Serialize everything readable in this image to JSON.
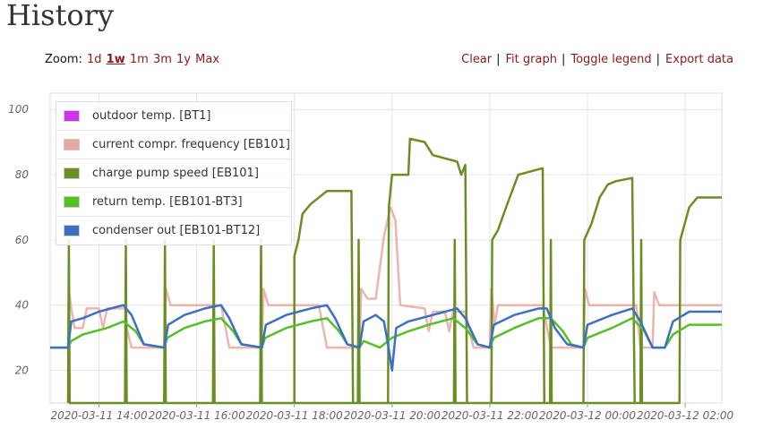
{
  "page": {
    "title": "History"
  },
  "zoom": {
    "label": "Zoom:",
    "options": [
      "1d",
      "1w",
      "1m",
      "3m",
      "1y",
      "Max"
    ],
    "active": "1w"
  },
  "actions": {
    "clear": "Clear",
    "fit_graph": "Fit graph",
    "toggle_legend": "Toggle legend",
    "export_data": "Export data",
    "separator": "|"
  },
  "chart_data": {
    "type": "line",
    "ylim": [
      10,
      105
    ],
    "yticks": [
      20,
      40,
      60,
      80,
      100
    ],
    "xlim": [
      "2020-03-11 13:00",
      "2020-03-12 02:45"
    ],
    "xticks": [
      "2020-03-11 14:00",
      "2020-03-11 16:00",
      "2020-03-11 18:00",
      "2020-03-11 20:00",
      "2020-03-11 22:00",
      "2020-03-12 00:00",
      "2020-03-12 02:00"
    ],
    "grid": true,
    "legend_position": "top-left",
    "series": [
      {
        "name": "outdoor temp. [BT1]",
        "color": "#cc33ee",
        "points": []
      },
      {
        "name": "current compr. frequency [EB101]",
        "color": "#e8a8a2",
        "points": [
          [
            "2020-03-11 13:00",
            27
          ],
          [
            "2020-03-11 13:22",
            27
          ],
          [
            "2020-03-11 13:23",
            45
          ],
          [
            "2020-03-11 13:26",
            39
          ],
          [
            "2020-03-11 13:30",
            33
          ],
          [
            "2020-03-11 13:40",
            33
          ],
          [
            "2020-03-11 13:45",
            39
          ],
          [
            "2020-03-11 14:00",
            39
          ],
          [
            "2020-03-11 14:05",
            33
          ],
          [
            "2020-03-11 14:10",
            39
          ],
          [
            "2020-03-11 14:32",
            39
          ],
          [
            "2020-03-11 14:34",
            33
          ],
          [
            "2020-03-11 14:40",
            27
          ],
          [
            "2020-03-11 15:20",
            27
          ],
          [
            "2020-03-11 15:22",
            45
          ],
          [
            "2020-03-11 15:28",
            40
          ],
          [
            "2020-03-11 16:30",
            40
          ],
          [
            "2020-03-11 16:40",
            27
          ],
          [
            "2020-03-11 17:20",
            27
          ],
          [
            "2020-03-11 17:22",
            45
          ],
          [
            "2020-03-11 17:28",
            40
          ],
          [
            "2020-03-11 18:30",
            40
          ],
          [
            "2020-03-11 18:40",
            27
          ],
          [
            "2020-03-11 19:20",
            27
          ],
          [
            "2020-03-11 19:22",
            45
          ],
          [
            "2020-03-11 19:30",
            42
          ],
          [
            "2020-03-11 19:40",
            42
          ],
          [
            "2020-03-11 19:50",
            61
          ],
          [
            "2020-03-11 19:58",
            70
          ],
          [
            "2020-03-11 20:04",
            66
          ],
          [
            "2020-03-11 20:10",
            40
          ],
          [
            "2020-03-11 20:40",
            39
          ],
          [
            "2020-03-11 20:45",
            32
          ],
          [
            "2020-03-11 20:50",
            38
          ],
          [
            "2020-03-11 21:05",
            38
          ],
          [
            "2020-03-11 21:10",
            32
          ],
          [
            "2020-03-11 21:15",
            38
          ],
          [
            "2020-03-11 21:30",
            38
          ],
          [
            "2020-03-11 21:40",
            27
          ],
          [
            "2020-03-11 22:00",
            27
          ],
          [
            "2020-03-11 22:02",
            45
          ],
          [
            "2020-03-11 22:06",
            34
          ],
          [
            "2020-03-11 22:10",
            40
          ],
          [
            "2020-03-11 23:05",
            40
          ],
          [
            "2020-03-11 23:15",
            27
          ],
          [
            "2020-03-11 23:55",
            27
          ],
          [
            "2020-03-11 23:57",
            45
          ],
          [
            "2020-03-12 00:02",
            40
          ],
          [
            "2020-03-12 01:00",
            40
          ],
          [
            "2020-03-12 01:05",
            27
          ],
          [
            "2020-03-12 01:20",
            27
          ],
          [
            "2020-03-12 01:22",
            44
          ],
          [
            "2020-03-12 01:28",
            40
          ],
          [
            "2020-03-12 02:45",
            40
          ]
        ]
      },
      {
        "name": "charge pump speed [EB101]",
        "color": "#6b8e23",
        "points": [
          [
            "2020-03-11 13:22",
            10
          ],
          [
            "2020-03-11 13:23",
            60
          ],
          [
            "2020-03-11 13:24",
            10
          ],
          [
            "2020-03-11 14:32",
            10
          ],
          [
            "2020-03-11 14:33",
            60
          ],
          [
            "2020-03-11 14:34",
            10
          ],
          [
            "2020-03-11 15:20",
            10
          ],
          [
            "2020-03-11 15:21",
            60
          ],
          [
            "2020-03-11 15:22",
            10
          ],
          [
            "2020-03-11 16:20",
            10
          ],
          [
            "2020-03-11 16:21",
            60
          ],
          [
            "2020-03-11 16:22",
            10
          ],
          [
            "2020-03-11 17:18",
            10
          ],
          [
            "2020-03-11 17:19",
            60
          ],
          [
            "2020-03-11 17:20",
            10
          ],
          [
            "2020-03-11 19:18",
            10
          ],
          [
            "2020-03-11 19:19",
            60
          ],
          [
            "2020-03-11 19:20",
            10
          ],
          [
            "2020-03-11 21:16",
            10
          ],
          [
            "2020-03-11 21:17",
            60
          ],
          [
            "2020-03-11 21:18",
            10
          ],
          [
            "2020-03-11 23:14",
            10
          ],
          [
            "2020-03-11 23:15",
            60
          ],
          [
            "2020-03-11 23:16",
            10
          ],
          [
            "2020-03-12 01:05",
            10
          ],
          [
            "2020-03-12 01:06",
            60
          ],
          [
            "2020-03-12 01:07",
            10
          ],
          [
            "2020-03-11 18:00",
            10
          ],
          [
            "2020-03-11 18:00",
            55
          ],
          [
            "2020-03-11 18:05",
            60
          ],
          [
            "2020-03-11 18:10",
            68
          ],
          [
            "2020-03-11 18:20",
            71
          ],
          [
            "2020-03-11 18:40",
            75
          ],
          [
            "2020-03-11 19:10",
            75
          ],
          [
            "2020-03-11 19:12",
            10
          ],
          [
            "2020-03-11 19:55",
            10
          ],
          [
            "2020-03-11 19:56",
            70
          ],
          [
            "2020-03-11 20:00",
            80
          ],
          [
            "2020-03-11 20:20",
            80
          ],
          [
            "2020-03-11 20:22",
            91
          ],
          [
            "2020-03-11 20:40",
            90
          ],
          [
            "2020-03-11 20:50",
            86
          ],
          [
            "2020-03-11 21:20",
            84
          ],
          [
            "2020-03-11 21:25",
            80
          ],
          [
            "2020-03-11 21:30",
            83
          ],
          [
            "2020-03-11 21:32",
            10
          ],
          [
            "2020-03-11 22:02",
            10
          ],
          [
            "2020-03-11 22:03",
            60
          ],
          [
            "2020-03-11 22:10",
            63
          ],
          [
            "2020-03-11 22:20",
            70
          ],
          [
            "2020-03-11 22:35",
            80
          ],
          [
            "2020-03-11 22:50",
            81
          ],
          [
            "2020-03-11 23:05",
            82
          ],
          [
            "2020-03-11 23:07",
            10
          ],
          [
            "2020-03-11 23:55",
            10
          ],
          [
            "2020-03-11 23:56",
            60
          ],
          [
            "2020-03-12 00:05",
            65
          ],
          [
            "2020-03-12 00:15",
            73
          ],
          [
            "2020-03-12 00:25",
            77
          ],
          [
            "2020-03-12 00:35",
            78
          ],
          [
            "2020-03-12 00:55",
            79
          ],
          [
            "2020-03-12 00:58",
            10
          ],
          [
            "2020-03-12 01:53",
            10
          ],
          [
            "2020-03-12 01:54",
            60
          ],
          [
            "2020-03-12 02:05",
            70
          ],
          [
            "2020-03-12 02:15",
            73
          ],
          [
            "2020-03-12 02:45",
            73
          ]
        ]
      },
      {
        "name": "return temp. [EB101-BT3]",
        "color": "#55c025",
        "points": [
          [
            "2020-03-11 13:00",
            27
          ],
          [
            "2020-03-11 13:22",
            27
          ],
          [
            "2020-03-11 13:26",
            29
          ],
          [
            "2020-03-11 13:40",
            31
          ],
          [
            "2020-03-11 14:10",
            33
          ],
          [
            "2020-03-11 14:30",
            35
          ],
          [
            "2020-03-11 14:45",
            32
          ],
          [
            "2020-03-11 14:55",
            28
          ],
          [
            "2020-03-11 15:20",
            27
          ],
          [
            "2020-03-11 15:24",
            30
          ],
          [
            "2020-03-11 15:45",
            33
          ],
          [
            "2020-03-11 16:10",
            35
          ],
          [
            "2020-03-11 16:30",
            36
          ],
          [
            "2020-03-11 16:45",
            32
          ],
          [
            "2020-03-11 16:55",
            28
          ],
          [
            "2020-03-11 17:20",
            27
          ],
          [
            "2020-03-11 17:24",
            30
          ],
          [
            "2020-03-11 17:50",
            33
          ],
          [
            "2020-03-11 18:20",
            35
          ],
          [
            "2020-03-11 18:40",
            36
          ],
          [
            "2020-03-11 18:55",
            32
          ],
          [
            "2020-03-11 19:05",
            28
          ],
          [
            "2020-03-11 19:20",
            27
          ],
          [
            "2020-03-11 19:25",
            29
          ],
          [
            "2020-03-11 19:35",
            28
          ],
          [
            "2020-03-11 19:45",
            27
          ],
          [
            "2020-03-11 20:00",
            30
          ],
          [
            "2020-03-11 20:20",
            32
          ],
          [
            "2020-03-11 20:45",
            34
          ],
          [
            "2020-03-11 21:15",
            36
          ],
          [
            "2020-03-11 21:30",
            33
          ],
          [
            "2020-03-11 21:45",
            28
          ],
          [
            "2020-03-11 22:00",
            27
          ],
          [
            "2020-03-11 22:05",
            30
          ],
          [
            "2020-03-11 22:30",
            33
          ],
          [
            "2020-03-11 23:00",
            36
          ],
          [
            "2020-03-11 23:15",
            36
          ],
          [
            "2020-03-11 23:30",
            32
          ],
          [
            "2020-03-11 23:40",
            28
          ],
          [
            "2020-03-11 23:55",
            27
          ],
          [
            "2020-03-11 24:00",
            30
          ],
          [
            "2020-03-12 00:30",
            33
          ],
          [
            "2020-03-12 00:55",
            36
          ],
          [
            "2020-03-12 01:10",
            32
          ],
          [
            "2020-03-12 01:20",
            27
          ],
          [
            "2020-03-12 01:35",
            27
          ],
          [
            "2020-03-12 01:45",
            31
          ],
          [
            "2020-03-12 02:05",
            34
          ],
          [
            "2020-03-12 02:45",
            34
          ]
        ]
      },
      {
        "name": "condenser out [EB101-BT12]",
        "color": "#3d6fc2",
        "points": [
          [
            "2020-03-11 13:00",
            27
          ],
          [
            "2020-03-11 13:22",
            27
          ],
          [
            "2020-03-11 13:26",
            35
          ],
          [
            "2020-03-11 13:40",
            36
          ],
          [
            "2020-03-11 14:00",
            38
          ],
          [
            "2020-03-11 14:30",
            40
          ],
          [
            "2020-03-11 14:40",
            37
          ],
          [
            "2020-03-11 14:55",
            28
          ],
          [
            "2020-03-11 15:20",
            27
          ],
          [
            "2020-03-11 15:25",
            34
          ],
          [
            "2020-03-11 15:45",
            37
          ],
          [
            "2020-03-11 16:10",
            39
          ],
          [
            "2020-03-11 16:30",
            40
          ],
          [
            "2020-03-11 16:40",
            36
          ],
          [
            "2020-03-11 16:55",
            28
          ],
          [
            "2020-03-11 17:20",
            27
          ],
          [
            "2020-03-11 17:25",
            34
          ],
          [
            "2020-03-11 17:50",
            37
          ],
          [
            "2020-03-11 18:20",
            39
          ],
          [
            "2020-03-11 18:40",
            40
          ],
          [
            "2020-03-11 18:50",
            36
          ],
          [
            "2020-03-11 19:05",
            28
          ],
          [
            "2020-03-11 19:20",
            27
          ],
          [
            "2020-03-11 19:25",
            35
          ],
          [
            "2020-03-11 19:40",
            37
          ],
          [
            "2020-03-11 19:50",
            35
          ],
          [
            "2020-03-11 19:55",
            28
          ],
          [
            "2020-03-11 20:00",
            20
          ],
          [
            "2020-03-11 20:05",
            33
          ],
          [
            "2020-03-11 20:20",
            35
          ],
          [
            "2020-03-11 20:50",
            37
          ],
          [
            "2020-03-11 21:20",
            39
          ],
          [
            "2020-03-11 21:30",
            36
          ],
          [
            "2020-03-11 21:45",
            28
          ],
          [
            "2020-03-11 22:00",
            27
          ],
          [
            "2020-03-11 22:05",
            34
          ],
          [
            "2020-03-11 22:30",
            37
          ],
          [
            "2020-03-11 23:00",
            39
          ],
          [
            "2020-03-11 23:10",
            39
          ],
          [
            "2020-03-11 23:20",
            33
          ],
          [
            "2020-03-11 23:35",
            28
          ],
          [
            "2020-03-11 23:55",
            27
          ],
          [
            "2020-03-11 24:00",
            34
          ],
          [
            "2020-03-12 00:30",
            37
          ],
          [
            "2020-03-12 00:55",
            39
          ],
          [
            "2020-03-12 01:05",
            35
          ],
          [
            "2020-03-12 01:20",
            27
          ],
          [
            "2020-03-12 01:35",
            27
          ],
          [
            "2020-03-12 01:45",
            35
          ],
          [
            "2020-03-12 02:05",
            38
          ],
          [
            "2020-03-12 02:45",
            38
          ]
        ]
      }
    ]
  }
}
